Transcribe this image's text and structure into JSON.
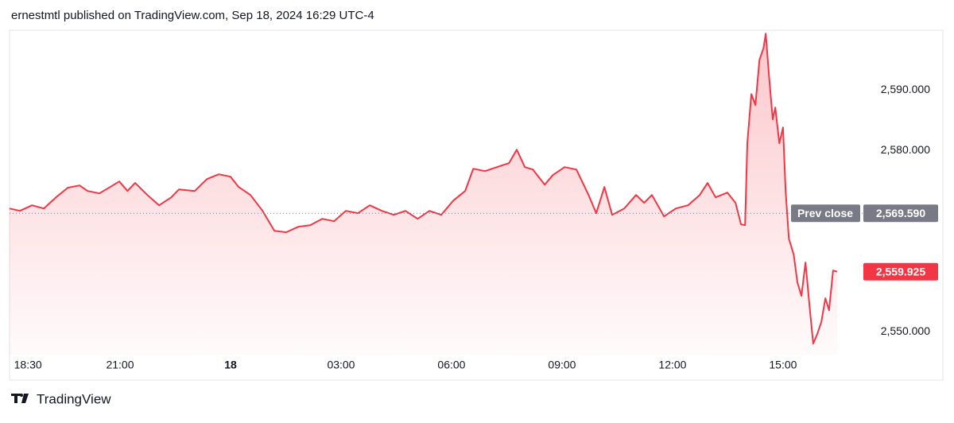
{
  "header": "ernestmtl published on TradingView.com, Sep 18, 2024 16:29 UTC-4",
  "footer": "TradingView",
  "chart_data": {
    "type": "line",
    "series": [
      {
        "color": "#f23645",
        "x": [
          18.0,
          18.28,
          18.61,
          18.93,
          19.26,
          19.58,
          19.9,
          20.12,
          20.44,
          20.66,
          20.98,
          21.2,
          21.41,
          21.74,
          22.06,
          22.39,
          22.6,
          23.03,
          23.36,
          23.68,
          24.0,
          24.22,
          24.54,
          24.87,
          25.19,
          25.51,
          25.84,
          26.16,
          26.49,
          26.81,
          27.13,
          27.46,
          27.78,
          28.11,
          28.43,
          28.75,
          29.08,
          29.4,
          29.72,
          30.05,
          30.37,
          30.59,
          30.91,
          31.23,
          31.56,
          31.77,
          31.99,
          32.21,
          32.53,
          32.75,
          33.07,
          33.39,
          33.72,
          33.93,
          34.15,
          34.36,
          34.69,
          35.01,
          35.23,
          35.44,
          35.77,
          36.09,
          36.42,
          36.74,
          36.95,
          37.17,
          37.49,
          37.71,
          37.86,
          37.97,
          38.03,
          38.14,
          38.25,
          38.36,
          38.47,
          38.53,
          38.62,
          38.72,
          38.79,
          38.9,
          39.0,
          39.07,
          39.16,
          39.29,
          39.39,
          39.5,
          39.61,
          39.72,
          39.82,
          39.93,
          40.04,
          40.15,
          40.25,
          40.36,
          40.47
        ],
        "values": [
          2570.39,
          2570.0,
          2570.92,
          2570.39,
          2572.24,
          2573.82,
          2574.21,
          2573.29,
          2572.89,
          2573.68,
          2574.87,
          2573.29,
          2574.61,
          2572.63,
          2570.92,
          2572.24,
          2573.55,
          2573.29,
          2575.26,
          2576.05,
          2575.66,
          2573.95,
          2572.63,
          2570.0,
          2566.71,
          2566.45,
          2567.37,
          2567.63,
          2568.68,
          2568.29,
          2570.0,
          2569.61,
          2570.92,
          2570.0,
          2569.34,
          2570.0,
          2568.68,
          2570.0,
          2569.34,
          2571.71,
          2573.29,
          2576.97,
          2576.58,
          2577.24,
          2577.89,
          2580.13,
          2577.24,
          2576.84,
          2574.34,
          2575.92,
          2577.24,
          2576.84,
          2572.63,
          2569.61,
          2573.95,
          2569.34,
          2570.39,
          2572.63,
          2571.32,
          2572.63,
          2569.08,
          2570.39,
          2570.92,
          2572.63,
          2574.61,
          2572.24,
          2573.03,
          2571.32,
          2567.76,
          2567.63,
          2581.18,
          2589.34,
          2587.5,
          2595.0,
          2596.97,
          2599.34,
          2592.37,
          2585.13,
          2587.11,
          2581.18,
          2583.82,
          2573.29,
          2565.39,
          2562.76,
          2558.16,
          2555.92,
          2561.45,
          2554.21,
          2548.03,
          2549.61,
          2551.58,
          2555.53,
          2553.55,
          2560.13,
          2559.925
        ],
        "last_value_label": "2,559.925"
      }
    ],
    "xlim": [
      18,
      41.16
    ],
    "xticks": [
      {
        "value": 18.5,
        "label": "18:30"
      },
      {
        "value": 21,
        "label": "21:00"
      },
      {
        "value": 24,
        "label": "18"
      },
      {
        "value": 27,
        "label": "03:00"
      },
      {
        "value": 30,
        "label": "06:00"
      },
      {
        "value": 33,
        "label": "09:00"
      },
      {
        "value": 36,
        "label": "12:00"
      },
      {
        "value": 39,
        "label": "15:00"
      }
    ],
    "ylim": [
      2546.2,
      2599.9
    ],
    "yticks": [
      {
        "value": 2550,
        "label": "2,550.000"
      },
      {
        "value": 2580,
        "label": "2,580.000"
      },
      {
        "value": 2590,
        "label": "2,590.000"
      }
    ],
    "prev_close": {
      "name": "Prev close",
      "value": 2569.59,
      "label": "2,569.590",
      "color": "#787b86"
    }
  }
}
